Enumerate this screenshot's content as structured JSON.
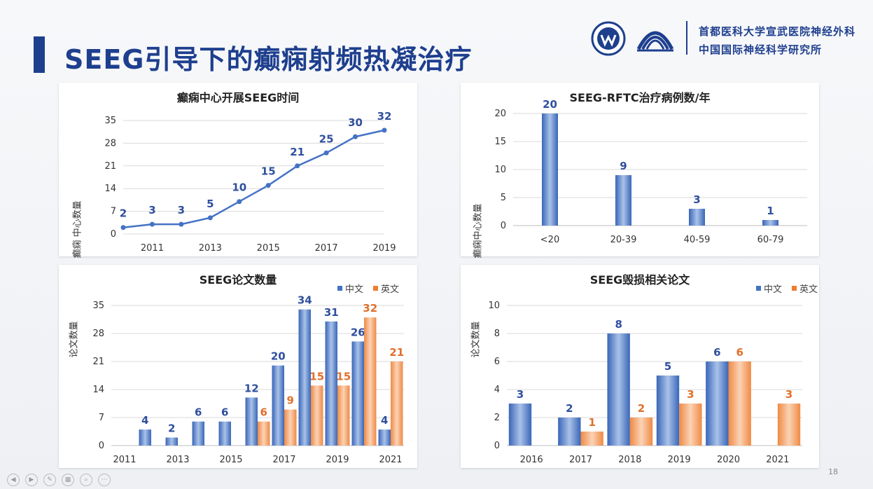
{
  "slide": {
    "title": "SEEG引导下的癫痫射频热凝治疗",
    "org_line1": "首都医科大学宣武医院神经外科",
    "org_line2": "中国国际神经科学研究所",
    "page_number": "18",
    "colors": {
      "blue": "#4472c4",
      "orange": "#ed7d31",
      "title": "#1e3f8e",
      "label_blue": "#2f4f9e",
      "label_orange": "#e0702a"
    }
  },
  "chart_data": [
    {
      "id": "c1",
      "type": "line",
      "title": "癫痫中心开展SEEG时间",
      "ylabel": "癫痫 中心数量",
      "x": [
        2010,
        2011,
        2012,
        2013,
        2014,
        2015,
        2016,
        2017,
        2018,
        2019
      ],
      "x_tick_labels": [
        "2011",
        "2013",
        "2015",
        "2017",
        "2019"
      ],
      "x_tick_values": [
        2011,
        2013,
        2015,
        2017,
        2019
      ],
      "values": [
        2,
        3,
        3,
        5,
        10,
        15,
        21,
        25,
        30,
        32
      ],
      "y_ticks": [
        0,
        7,
        14,
        21,
        28,
        35
      ],
      "ylim": [
        0,
        35
      ]
    },
    {
      "id": "c2",
      "type": "bar",
      "title": "SEEG-RFTC治疗病例数/年",
      "ylabel": "癫痫中心数量",
      "categories": [
        "<20",
        "20-39",
        "40-59",
        "60-79"
      ],
      "values": [
        20,
        9,
        3,
        1
      ],
      "y_ticks": [
        0,
        5,
        10,
        15,
        20
      ],
      "ylim": [
        0,
        20
      ]
    },
    {
      "id": "c3",
      "type": "bar",
      "title": "SEEG论文数量",
      "ylabel": "论文数量",
      "legend": [
        "中文",
        "英文"
      ],
      "x": [
        2011,
        2012,
        2013,
        2014,
        2015,
        2016,
        2017,
        2018,
        2019,
        2020,
        2021
      ],
      "x_tick_labels": [
        "2011",
        "2013",
        "2015",
        "2017",
        "2019",
        "2021"
      ],
      "x_tick_values": [
        2011,
        2013,
        2015,
        2017,
        2019,
        2021
      ],
      "series": [
        {
          "name": "中文",
          "values": [
            null,
            4,
            2,
            6,
            6,
            12,
            20,
            34,
            31,
            26,
            4
          ]
        },
        {
          "name": "英文",
          "values": [
            null,
            null,
            null,
            null,
            null,
            6,
            9,
            15,
            15,
            32,
            21
          ]
        }
      ],
      "y_ticks": [
        0,
        7,
        14,
        21,
        28,
        35
      ],
      "ylim": [
        0,
        35
      ]
    },
    {
      "id": "c4",
      "type": "bar",
      "title": "SEEG毁损相关论文",
      "ylabel": "论文数量",
      "legend": [
        "中文",
        "英文"
      ],
      "categories": [
        "2016",
        "2017",
        "2018",
        "2019",
        "2020",
        "2021"
      ],
      "series": [
        {
          "name": "中文",
          "values": [
            3,
            2,
            8,
            5,
            6,
            null
          ]
        },
        {
          "name": "英文",
          "values": [
            null,
            1,
            2,
            3,
            6,
            3
          ]
        }
      ],
      "y_ticks": [
        0,
        2,
        4,
        6,
        8,
        10
      ],
      "ylim": [
        0,
        10
      ]
    }
  ]
}
